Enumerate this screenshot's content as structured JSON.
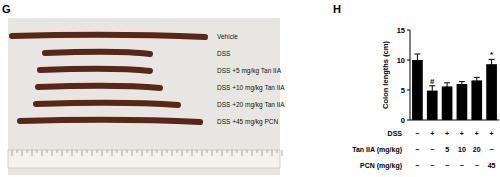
{
  "photo": {
    "panel": "G",
    "captions": [
      "Vehicle",
      "DSS",
      "DSS +5 mg/kg Tan IIA",
      "DSS +10 mg/kg Tan IIA",
      "DSS +20 mg/kg Tan IIA",
      "DSS +45 mg/kg PCN"
    ]
  },
  "chart_data": {
    "type": "bar",
    "panel": "H",
    "y_label": "Colon lengths (cm)",
    "categories": [
      null,
      null,
      null,
      null,
      null,
      null
    ],
    "values": [
      10,
      4.9,
      5.6,
      6.0,
      6.6,
      9.3
    ],
    "errors": [
      1.0,
      0.8,
      0.6,
      0.4,
      0.5,
      0.8
    ],
    "color": "#000000",
    "ylim": [
      0,
      15
    ],
    "yticks": [
      0,
      5,
      10,
      15
    ],
    "grid": false,
    "annotations": [
      {
        "text": "#",
        "category": 1
      },
      {
        "text": "*",
        "category": 5
      }
    ],
    "x_table": {
      "rows": [
        {
          "label": "DSS",
          "cells": [
            "−",
            "+",
            "+",
            "+",
            "+",
            "+"
          ]
        },
        {
          "label": "Tan IIA (mg/kg)",
          "cells": [
            "−",
            "−",
            "5",
            "10",
            "20",
            "−"
          ]
        },
        {
          "label": "PCN (mg/kg)",
          "cells": [
            "−",
            "−",
            "−",
            "−",
            "−",
            "45"
          ]
        }
      ]
    }
  }
}
